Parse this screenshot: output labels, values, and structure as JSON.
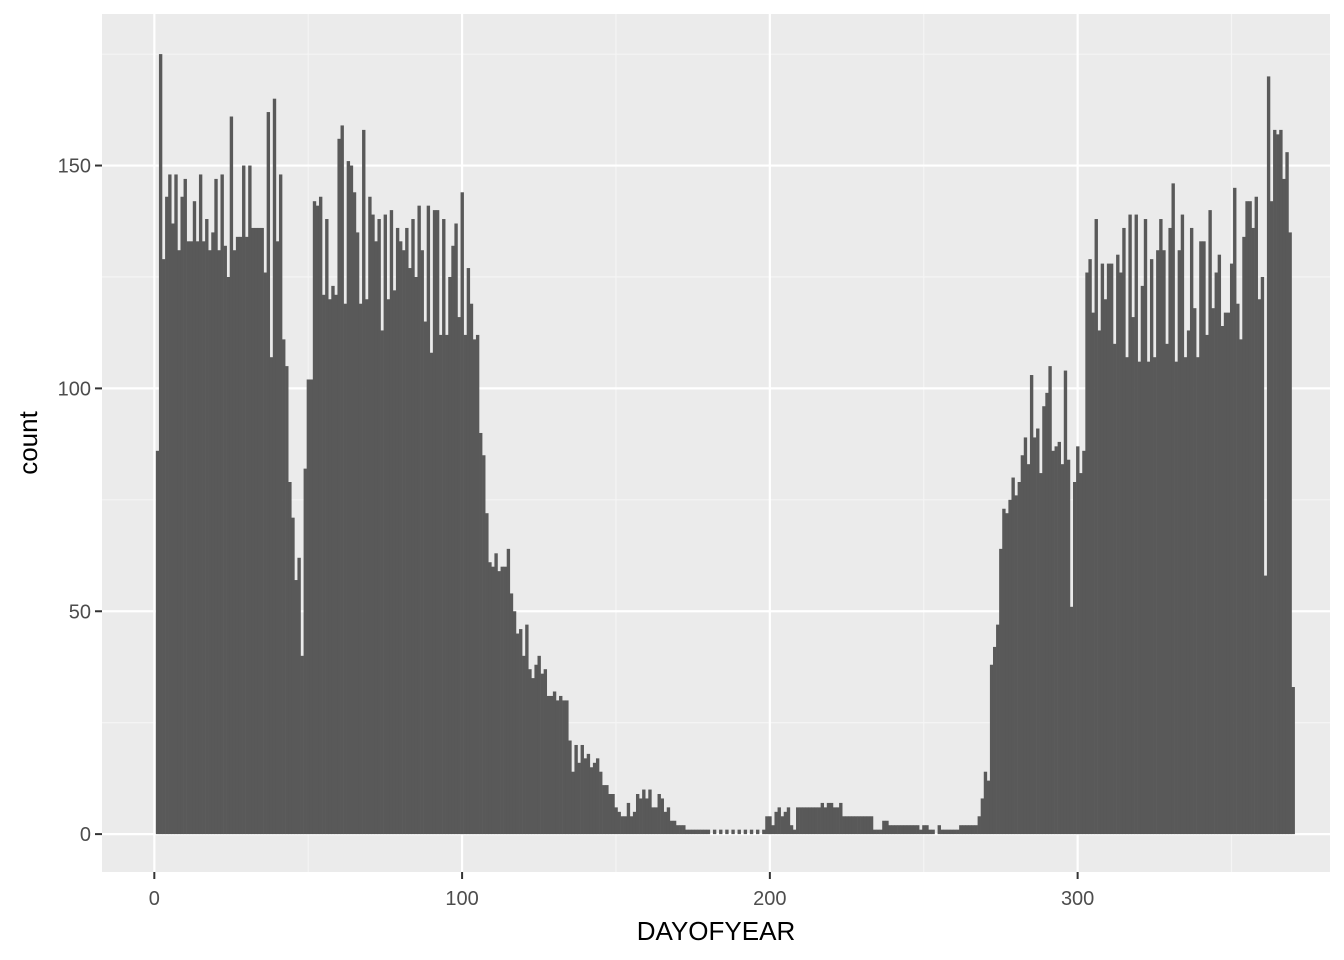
{
  "chart_data": {
    "type": "bar",
    "title": "",
    "xlabel": "DAYOFYEAR",
    "ylabel": "count",
    "xlim": [
      -17,
      382
    ],
    "ylim": [
      -8.5,
      184
    ],
    "x_ticks": [
      0,
      100,
      200,
      300
    ],
    "x_tick_labels": [
      "0",
      "100",
      "200",
      "300"
    ],
    "y_ticks": [
      0,
      50,
      100,
      150
    ],
    "y_tick_labels": [
      "0",
      "50",
      "100",
      "150"
    ],
    "grid": true,
    "legend": "none",
    "colors": {
      "panel_background": "#ebebeb",
      "grid_major": "#ffffff",
      "grid_minor": "#f5f5f5",
      "bar_fill": "#595959",
      "tick_label": "#4d4d4d",
      "axis_title": "#000000"
    },
    "x_start": 1,
    "values": [
      86,
      175,
      129,
      143,
      148,
      137,
      148,
      131,
      143,
      147,
      133,
      133,
      142,
      133,
      148,
      133,
      138,
      131,
      135,
      147,
      131,
      148,
      132,
      125,
      161,
      131,
      134,
      134,
      150,
      134,
      150,
      136,
      136,
      136,
      136,
      126,
      162,
      107,
      165,
      133,
      148,
      111,
      105,
      79,
      71,
      57,
      62,
      40,
      82,
      102,
      102,
      142,
      141,
      143,
      121,
      138,
      120,
      123,
      121,
      156,
      159,
      119,
      151,
      150,
      144,
      135,
      119,
      158,
      120,
      143,
      139,
      133,
      138,
      113,
      139,
      120,
      140,
      122,
      136,
      133,
      131,
      136,
      127,
      138,
      125,
      141,
      131,
      115,
      141,
      108,
      140,
      140,
      112,
      138,
      112,
      125,
      132,
      137,
      116,
      144,
      112,
      127,
      119,
      111,
      112,
      90,
      85,
      72,
      61,
      60,
      63,
      59,
      60,
      60,
      64,
      54,
      50,
      45,
      46,
      40,
      47,
      37,
      35,
      38,
      40,
      36,
      37,
      31,
      31,
      32,
      30,
      31,
      30,
      30,
      21,
      14,
      20,
      16,
      20,
      17,
      18,
      15,
      16,
      17,
      14,
      11,
      11,
      9,
      9,
      6,
      5,
      4,
      4,
      7,
      4,
      5,
      9,
      8,
      10,
      8,
      10,
      6,
      6,
      9,
      8,
      5,
      6,
      3,
      3,
      2,
      2,
      2,
      1,
      1,
      1,
      1,
      1,
      1,
      1,
      1,
      0,
      1,
      0,
      1,
      0,
      1,
      0,
      1,
      0,
      1,
      0,
      1,
      0,
      1,
      0,
      1,
      0,
      1,
      4,
      4,
      2,
      5,
      6,
      4,
      5,
      6,
      2,
      1,
      6,
      6,
      6,
      6,
      6,
      6,
      6,
      6,
      7,
      6,
      7,
      7,
      6,
      6,
      7,
      4,
      4,
      4,
      4,
      4,
      4,
      4,
      4,
      4,
      4,
      1,
      1,
      1,
      3,
      3,
      2,
      2,
      2,
      2,
      2,
      2,
      2,
      2,
      2,
      2,
      1,
      2,
      2,
      1,
      1,
      0,
      2,
      1,
      1,
      1,
      1,
      1,
      1,
      2,
      2,
      2,
      2,
      2,
      2,
      4,
      8,
      14,
      12,
      38,
      42,
      47,
      64,
      73,
      72,
      75,
      80,
      76,
      79,
      85,
      89,
      83,
      103,
      89,
      91,
      81,
      96,
      99,
      105,
      86,
      87,
      88,
      83,
      104,
      84,
      51,
      79,
      87,
      81,
      86,
      126,
      129,
      117,
      138,
      113,
      128,
      120,
      128,
      128,
      110,
      130,
      126,
      136,
      107,
      139,
      116,
      139,
      106,
      123,
      138,
      106,
      129,
      107,
      131,
      138,
      131,
      110,
      136,
      146,
      106,
      131,
      139,
      107,
      113,
      136,
      118,
      107,
      133,
      133,
      112,
      140,
      118,
      126,
      130,
      114,
      117,
      117,
      128,
      145,
      119,
      111,
      134,
      142,
      142,
      136,
      143,
      120,
      125,
      58,
      170,
      142,
      158,
      157,
      158,
      147,
      153,
      135,
      33
    ]
  }
}
